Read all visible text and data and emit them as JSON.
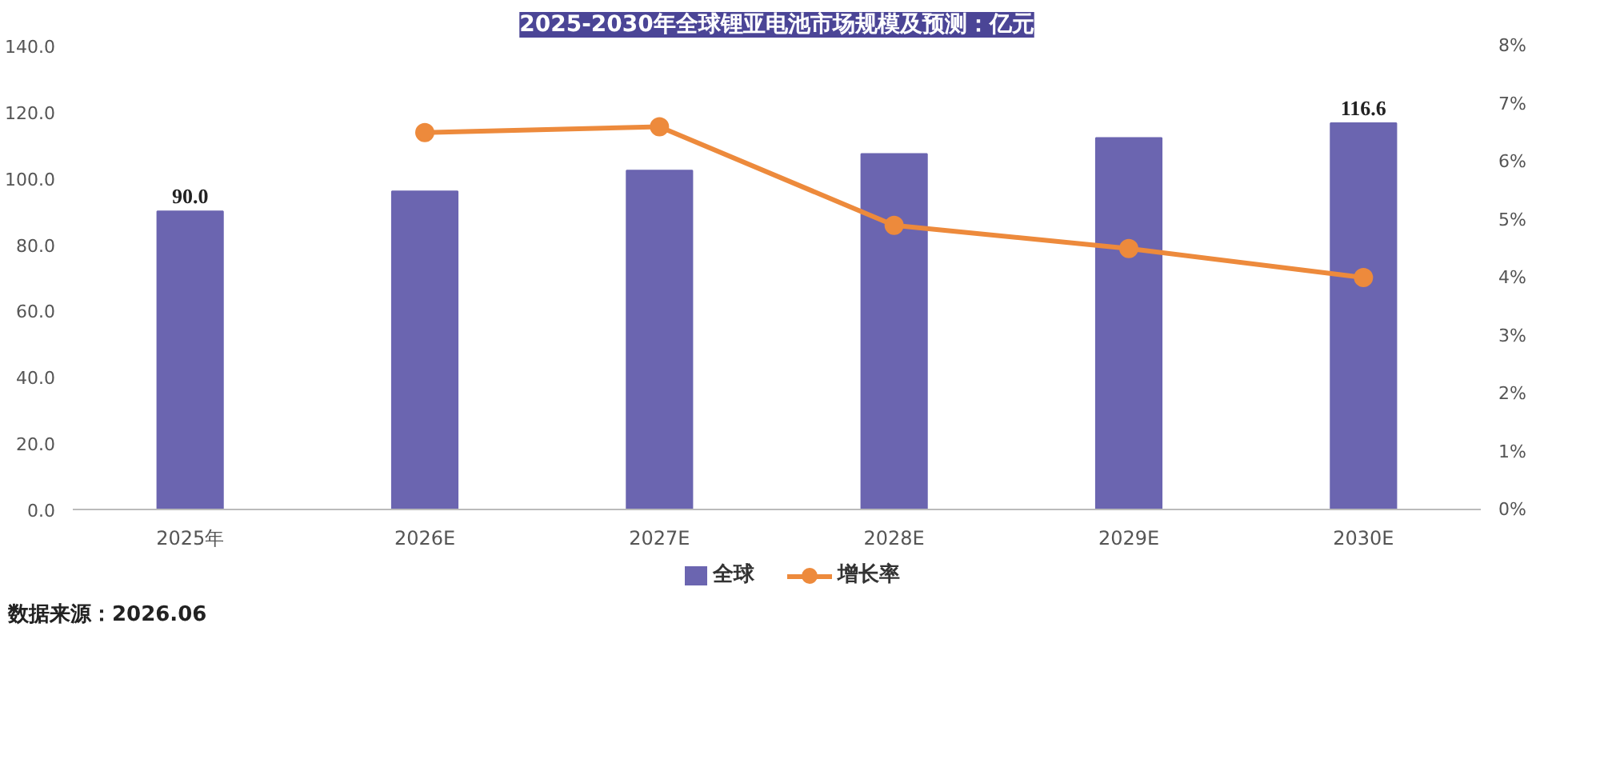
{
  "chart_data": {
    "type": "bar",
    "title": "2025-2030年全球锂亚电池市场规模及预测：亿元",
    "categories": [
      "2025年",
      "2026E",
      "2027E",
      "2028E",
      "2029E",
      "2030E"
    ],
    "series": [
      {
        "name": "全球",
        "color": "#6b65b0",
        "values": [
          90.0,
          96.0,
          102.3,
          107.3,
          112.1,
          116.6
        ],
        "value_labels": [
          "90.0",
          null,
          null,
          null,
          null,
          "116.6"
        ]
      },
      {
        "name": "增长率",
        "type": "line",
        "axis": "y2",
        "color": "#ed8a3c",
        "values": [
          null,
          6.5,
          6.6,
          4.9,
          4.5,
          4.0
        ],
        "marker": "circle"
      }
    ],
    "ylim": [
      0,
      140
    ],
    "yticks": [
      {
        "value": 0,
        "label": "0.0"
      },
      {
        "value": 20,
        "label": "20.0"
      },
      {
        "value": 40,
        "label": "40.0"
      },
      {
        "value": 60,
        "label": "60.0"
      },
      {
        "value": 80,
        "label": "80.0"
      },
      {
        "value": 100,
        "label": "100.0"
      },
      {
        "value": 120,
        "label": "120.0"
      },
      {
        "value": 140,
        "label": "140.0"
      }
    ],
    "y2lim": [
      0,
      8
    ],
    "y2ticks": [
      {
        "value": 0,
        "label": "0%"
      },
      {
        "value": 1,
        "label": "1%"
      },
      {
        "value": 2,
        "label": "2%"
      },
      {
        "value": 3,
        "label": "3%"
      },
      {
        "value": 4,
        "label": "4%"
      },
      {
        "value": 5,
        "label": "5%"
      },
      {
        "value": 6,
        "label": "6%"
      },
      {
        "value": 7,
        "label": "7%"
      },
      {
        "value": 8,
        "label": "8%"
      }
    ],
    "legend": "bottom",
    "grid": false,
    "annotations": [
      "数据来源：2026.06"
    ]
  }
}
